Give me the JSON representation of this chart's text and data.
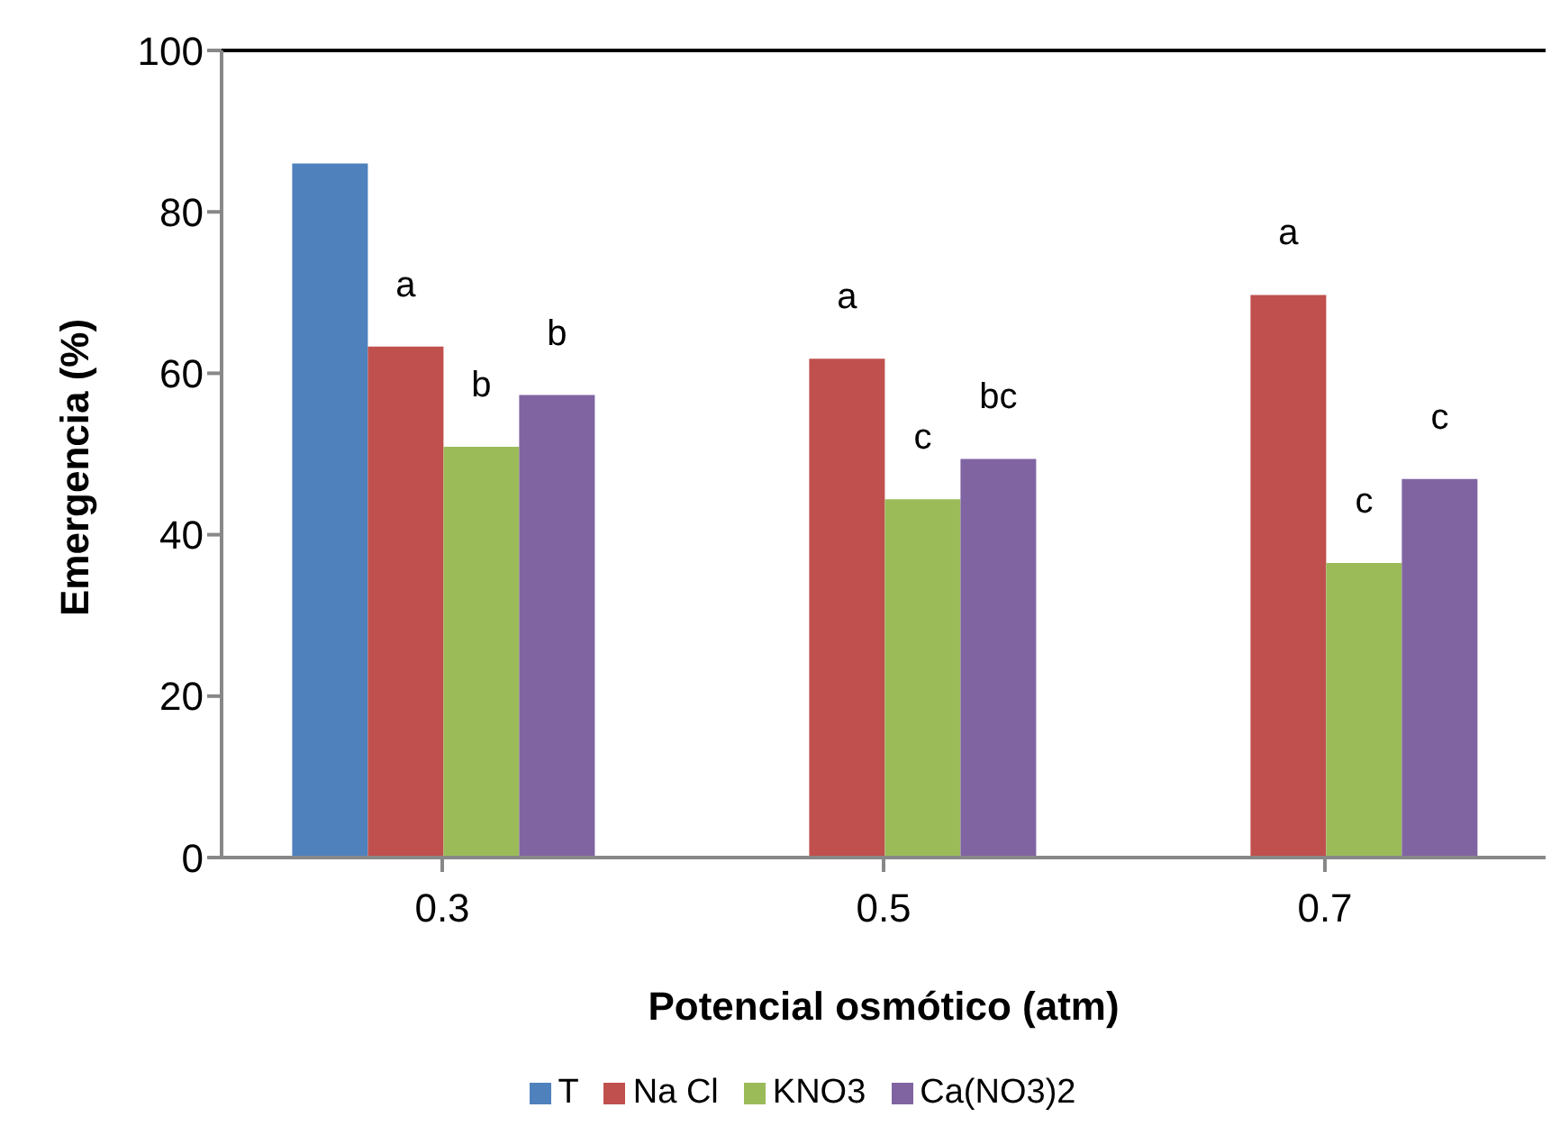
{
  "chart_data": {
    "type": "bar",
    "xlabel": "Potencial osmótico (atm)",
    "ylabel": "Emergencia (%)",
    "categories": [
      "0.3",
      "0.5",
      "0.7"
    ],
    "series": [
      {
        "name": "T",
        "color": "#4f81bd",
        "values": [
          86,
          null,
          null
        ]
      },
      {
        "name": "Na Cl",
        "color": "#c0504d",
        "values": [
          63.3,
          61.8,
          69.7
        ],
        "value_labels": [
          "a",
          "a",
          "a"
        ]
      },
      {
        "name": "KNO3",
        "color": "#9bbb59",
        "values": [
          50.9,
          44.4,
          36.5
        ],
        "value_labels": [
          "b",
          "c",
          "c"
        ]
      },
      {
        "name": "Ca(NO3)2",
        "color": "#8064a2",
        "values": [
          57.3,
          49.4,
          46.9
        ],
        "value_labels": [
          "b",
          "bc",
          "c"
        ]
      }
    ],
    "ylim": [
      0,
      100
    ],
    "yticks": [
      0,
      20,
      40,
      60,
      80,
      100
    ],
    "legend": "bottom"
  }
}
